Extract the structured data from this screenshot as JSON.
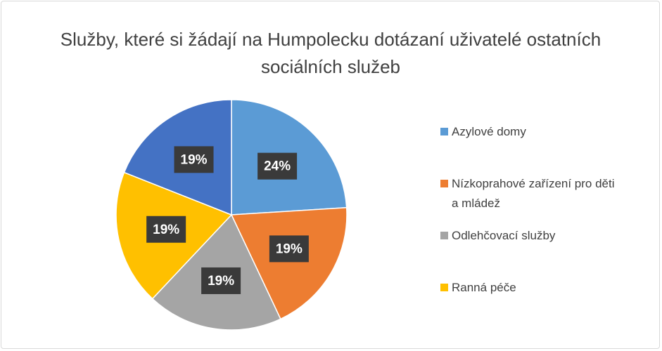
{
  "chart_data": {
    "type": "pie",
    "title": "Služby, které si žádají na Humpolecku dotázaní uživatelé ostatních sociálních služeb",
    "categories": [
      "Azylové domy",
      "Nízkoprahové zařízení pro děti a mládež",
      "Odlehčovací služby",
      "Ranná péče",
      null
    ],
    "values": [
      24,
      19,
      19,
      19,
      19
    ],
    "value_labels": [
      "24%",
      "19%",
      "19%",
      "19%",
      "19%"
    ],
    "colors": [
      "#5b9bd5",
      "#ed7d31",
      "#a5a5a5",
      "#ffc000",
      "#4472c4"
    ],
    "legend": "right"
  }
}
